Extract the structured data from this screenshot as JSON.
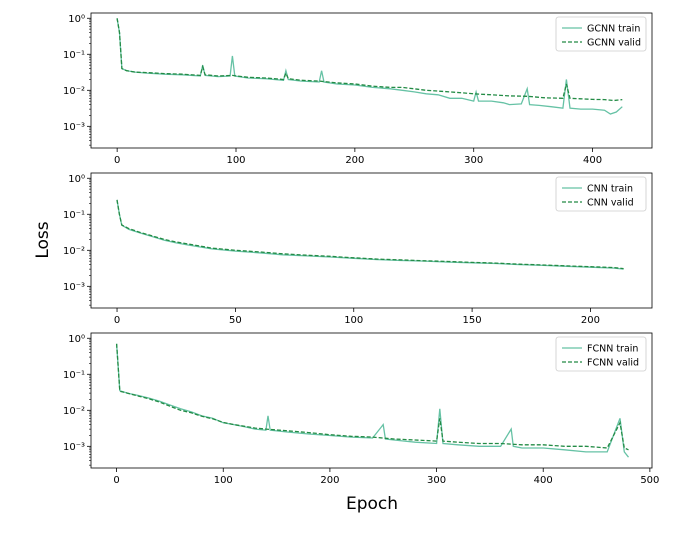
{
  "figure": {
    "ylabel": "Loss",
    "xlabel": "Epoch"
  },
  "chart_data": [
    {
      "type": "line",
      "yscale": "log",
      "ylim": [
        0.00025,
        1.4
      ],
      "xlim": [
        -22,
        450
      ],
      "xticks": [
        0,
        100,
        200,
        300,
        400
      ],
      "yticks": [
        {
          "value": 1,
          "label": "10⁰"
        },
        {
          "value": 0.1,
          "label": "10⁻¹"
        },
        {
          "value": 0.01,
          "label": "10⁻²"
        },
        {
          "value": 0.001,
          "label": "10⁻³"
        }
      ],
      "grid": false,
      "legend_position": "top-right",
      "series": [
        {
          "name": "GCNN train",
          "style": "solid",
          "color": "#66c2a5",
          "points": [
            [
              0,
              1.0
            ],
            [
              2,
              0.4
            ],
            [
              4,
              0.04
            ],
            [
              8,
              0.035
            ],
            [
              15,
              0.032
            ],
            [
              25,
              0.03
            ],
            [
              40,
              0.028
            ],
            [
              55,
              0.027
            ],
            [
              70,
              0.025
            ],
            [
              72,
              0.05
            ],
            [
              74,
              0.026
            ],
            [
              85,
              0.024
            ],
            [
              95,
              0.025
            ],
            [
              97,
              0.09
            ],
            [
              99,
              0.025
            ],
            [
              110,
              0.022
            ],
            [
              125,
              0.021
            ],
            [
              140,
              0.019
            ],
            [
              142,
              0.035
            ],
            [
              144,
              0.02
            ],
            [
              155,
              0.018
            ],
            [
              170,
              0.017
            ],
            [
              172,
              0.035
            ],
            [
              174,
              0.017
            ],
            [
              185,
              0.015
            ],
            [
              200,
              0.014
            ],
            [
              215,
              0.012
            ],
            [
              230,
              0.011
            ],
            [
              240,
              0.01
            ],
            [
              250,
              0.009
            ],
            [
              260,
              0.008
            ],
            [
              270,
              0.0075
            ],
            [
              280,
              0.006
            ],
            [
              290,
              0.006
            ],
            [
              300,
              0.005
            ],
            [
              302,
              0.009
            ],
            [
              304,
              0.005
            ],
            [
              315,
              0.005
            ],
            [
              325,
              0.0045
            ],
            [
              330,
              0.004
            ],
            [
              340,
              0.0042
            ],
            [
              345,
              0.011
            ],
            [
              347,
              0.004
            ],
            [
              355,
              0.0038
            ],
            [
              365,
              0.0035
            ],
            [
              375,
              0.0032
            ],
            [
              378,
              0.02
            ],
            [
              381,
              0.0032
            ],
            [
              390,
              0.003
            ],
            [
              400,
              0.003
            ],
            [
              410,
              0.0028
            ],
            [
              415,
              0.0022
            ],
            [
              420,
              0.0025
            ],
            [
              425,
              0.0035
            ]
          ]
        },
        {
          "name": "GCNN valid",
          "style": "dashed",
          "color": "#238b45",
          "points": [
            [
              0,
              1.0
            ],
            [
              2,
              0.4
            ],
            [
              4,
              0.04
            ],
            [
              8,
              0.035
            ],
            [
              15,
              0.032
            ],
            [
              25,
              0.031
            ],
            [
              40,
              0.029
            ],
            [
              55,
              0.028
            ],
            [
              70,
              0.026
            ],
            [
              72,
              0.045
            ],
            [
              74,
              0.027
            ],
            [
              85,
              0.025
            ],
            [
              97,
              0.026
            ],
            [
              110,
              0.023
            ],
            [
              125,
              0.022
            ],
            [
              140,
              0.02
            ],
            [
              142,
              0.03
            ],
            [
              144,
              0.021
            ],
            [
              155,
              0.019
            ],
            [
              170,
              0.018
            ],
            [
              185,
              0.016
            ],
            [
              200,
              0.015
            ],
            [
              215,
              0.013
            ],
            [
              230,
              0.012
            ],
            [
              240,
              0.012
            ],
            [
              250,
              0.011
            ],
            [
              260,
              0.01
            ],
            [
              270,
              0.0095
            ],
            [
              280,
              0.009
            ],
            [
              290,
              0.0085
            ],
            [
              300,
              0.008
            ],
            [
              315,
              0.0075
            ],
            [
              330,
              0.007
            ],
            [
              345,
              0.0068
            ],
            [
              360,
              0.0062
            ],
            [
              375,
              0.006
            ],
            [
              378,
              0.015
            ],
            [
              381,
              0.006
            ],
            [
              390,
              0.0058
            ],
            [
              400,
              0.0056
            ],
            [
              410,
              0.0055
            ],
            [
              418,
              0.0052
            ],
            [
              425,
              0.0055
            ]
          ]
        }
      ]
    },
    {
      "type": "line",
      "yscale": "log",
      "ylim": [
        0.00025,
        1.4
      ],
      "xlim": [
        -11,
        226
      ],
      "xticks": [
        0,
        50,
        100,
        150,
        200
      ],
      "yticks": [
        {
          "value": 1,
          "label": "10⁰"
        },
        {
          "value": 0.1,
          "label": "10⁻¹"
        },
        {
          "value": 0.01,
          "label": "10⁻²"
        },
        {
          "value": 0.001,
          "label": "10⁻³"
        }
      ],
      "grid": false,
      "legend_position": "top-right",
      "series": [
        {
          "name": "CNN train",
          "style": "solid",
          "color": "#66c2a5",
          "points": [
            [
              0,
              0.25
            ],
            [
              1,
              0.1
            ],
            [
              2,
              0.05
            ],
            [
              5,
              0.038
            ],
            [
              10,
              0.03
            ],
            [
              15,
              0.024
            ],
            [
              20,
              0.019
            ],
            [
              25,
              0.016
            ],
            [
              30,
              0.014
            ],
            [
              40,
              0.011
            ],
            [
              50,
              0.0095
            ],
            [
              60,
              0.0085
            ],
            [
              70,
              0.0075
            ],
            [
              80,
              0.007
            ],
            [
              90,
              0.0065
            ],
            [
              100,
              0.006
            ],
            [
              110,
              0.0055
            ],
            [
              120,
              0.0052
            ],
            [
              130,
              0.005
            ],
            [
              140,
              0.0047
            ],
            [
              150,
              0.0045
            ],
            [
              160,
              0.0043
            ],
            [
              170,
              0.004
            ],
            [
              180,
              0.0038
            ],
            [
              190,
              0.0036
            ],
            [
              200,
              0.0034
            ],
            [
              210,
              0.0032
            ],
            [
              214,
              0.003
            ]
          ]
        },
        {
          "name": "CNN valid",
          "style": "dashed",
          "color": "#238b45",
          "points": [
            [
              0,
              0.25
            ],
            [
              1,
              0.1
            ],
            [
              2,
              0.05
            ],
            [
              5,
              0.04
            ],
            [
              10,
              0.031
            ],
            [
              15,
              0.025
            ],
            [
              20,
              0.02
            ],
            [
              25,
              0.017
            ],
            [
              30,
              0.015
            ],
            [
              40,
              0.0115
            ],
            [
              50,
              0.01
            ],
            [
              60,
              0.009
            ],
            [
              70,
              0.008
            ],
            [
              80,
              0.0073
            ],
            [
              90,
              0.0068
            ],
            [
              100,
              0.0062
            ],
            [
              110,
              0.0057
            ],
            [
              120,
              0.0054
            ],
            [
              130,
              0.0051
            ],
            [
              140,
              0.0049
            ],
            [
              150,
              0.0046
            ],
            [
              160,
              0.0044
            ],
            [
              170,
              0.0041
            ],
            [
              180,
              0.0039
            ],
            [
              190,
              0.0037
            ],
            [
              200,
              0.0035
            ],
            [
              210,
              0.0033
            ],
            [
              214,
              0.0031
            ]
          ]
        }
      ]
    },
    {
      "type": "line",
      "yscale": "log",
      "ylim": [
        0.00025,
        1.4
      ],
      "xlim": [
        -24,
        502
      ],
      "xticks": [
        0,
        100,
        200,
        300,
        400,
        500
      ],
      "yticks": [
        {
          "value": 1,
          "label": "10⁰"
        },
        {
          "value": 0.1,
          "label": "10⁻¹"
        },
        {
          "value": 0.01,
          "label": "10⁻²"
        },
        {
          "value": 0.001,
          "label": "10⁻³"
        }
      ],
      "grid": false,
      "legend_position": "top-right",
      "series": [
        {
          "name": "FCNN train",
          "style": "solid",
          "color": "#66c2a5",
          "points": [
            [
              0,
              0.7
            ],
            [
              2,
              0.1
            ],
            [
              3,
              0.035
            ],
            [
              10,
              0.03
            ],
            [
              20,
              0.026
            ],
            [
              30,
              0.022
            ],
            [
              40,
              0.018
            ],
            [
              50,
              0.014
            ],
            [
              60,
              0.011
            ],
            [
              70,
              0.009
            ],
            [
              80,
              0.007
            ],
            [
              90,
              0.006
            ],
            [
              100,
              0.0045
            ],
            [
              110,
              0.004
            ],
            [
              120,
              0.0035
            ],
            [
              130,
              0.003
            ],
            [
              140,
              0.0028
            ],
            [
              142,
              0.007
            ],
            [
              144,
              0.0028
            ],
            [
              160,
              0.0025
            ],
            [
              180,
              0.0022
            ],
            [
              200,
              0.002
            ],
            [
              220,
              0.0018
            ],
            [
              240,
              0.0017
            ],
            [
              250,
              0.004
            ],
            [
              252,
              0.0016
            ],
            [
              270,
              0.0014
            ],
            [
              280,
              0.0013
            ],
            [
              300,
              0.0012
            ],
            [
              303,
              0.011
            ],
            [
              306,
              0.0012
            ],
            [
              320,
              0.0011
            ],
            [
              340,
              0.001
            ],
            [
              360,
              0.001
            ],
            [
              370,
              0.003
            ],
            [
              372,
              0.001
            ],
            [
              380,
              0.0009
            ],
            [
              400,
              0.0009
            ],
            [
              420,
              0.0008
            ],
            [
              440,
              0.0007
            ],
            [
              460,
              0.0007
            ],
            [
              472,
              0.006
            ],
            [
              476,
              0.0007
            ],
            [
              480,
              0.0005
            ]
          ]
        },
        {
          "name": "FCNN valid",
          "style": "dashed",
          "color": "#238b45",
          "points": [
            [
              0,
              0.7
            ],
            [
              2,
              0.1
            ],
            [
              3,
              0.034
            ],
            [
              10,
              0.03
            ],
            [
              20,
              0.025
            ],
            [
              30,
              0.021
            ],
            [
              40,
              0.017
            ],
            [
              50,
              0.013
            ],
            [
              60,
              0.01
            ],
            [
              70,
              0.0085
            ],
            [
              80,
              0.0068
            ],
            [
              90,
              0.0058
            ],
            [
              100,
              0.0046
            ],
            [
              110,
              0.004
            ],
            [
              120,
              0.0036
            ],
            [
              130,
              0.0032
            ],
            [
              140,
              0.003
            ],
            [
              160,
              0.0027
            ],
            [
              180,
              0.0024
            ],
            [
              200,
              0.0021
            ],
            [
              220,
              0.0019
            ],
            [
              240,
              0.0018
            ],
            [
              260,
              0.0016
            ],
            [
              280,
              0.0015
            ],
            [
              300,
              0.0014
            ],
            [
              303,
              0.006
            ],
            [
              306,
              0.0014
            ],
            [
              320,
              0.0013
            ],
            [
              340,
              0.0012
            ],
            [
              360,
              0.0012
            ],
            [
              380,
              0.0011
            ],
            [
              400,
              0.0011
            ],
            [
              420,
              0.001
            ],
            [
              440,
              0.001
            ],
            [
              460,
              0.0009
            ],
            [
              472,
              0.0045
            ],
            [
              476,
              0.0009
            ],
            [
              480,
              0.0008
            ]
          ]
        }
      ]
    }
  ]
}
